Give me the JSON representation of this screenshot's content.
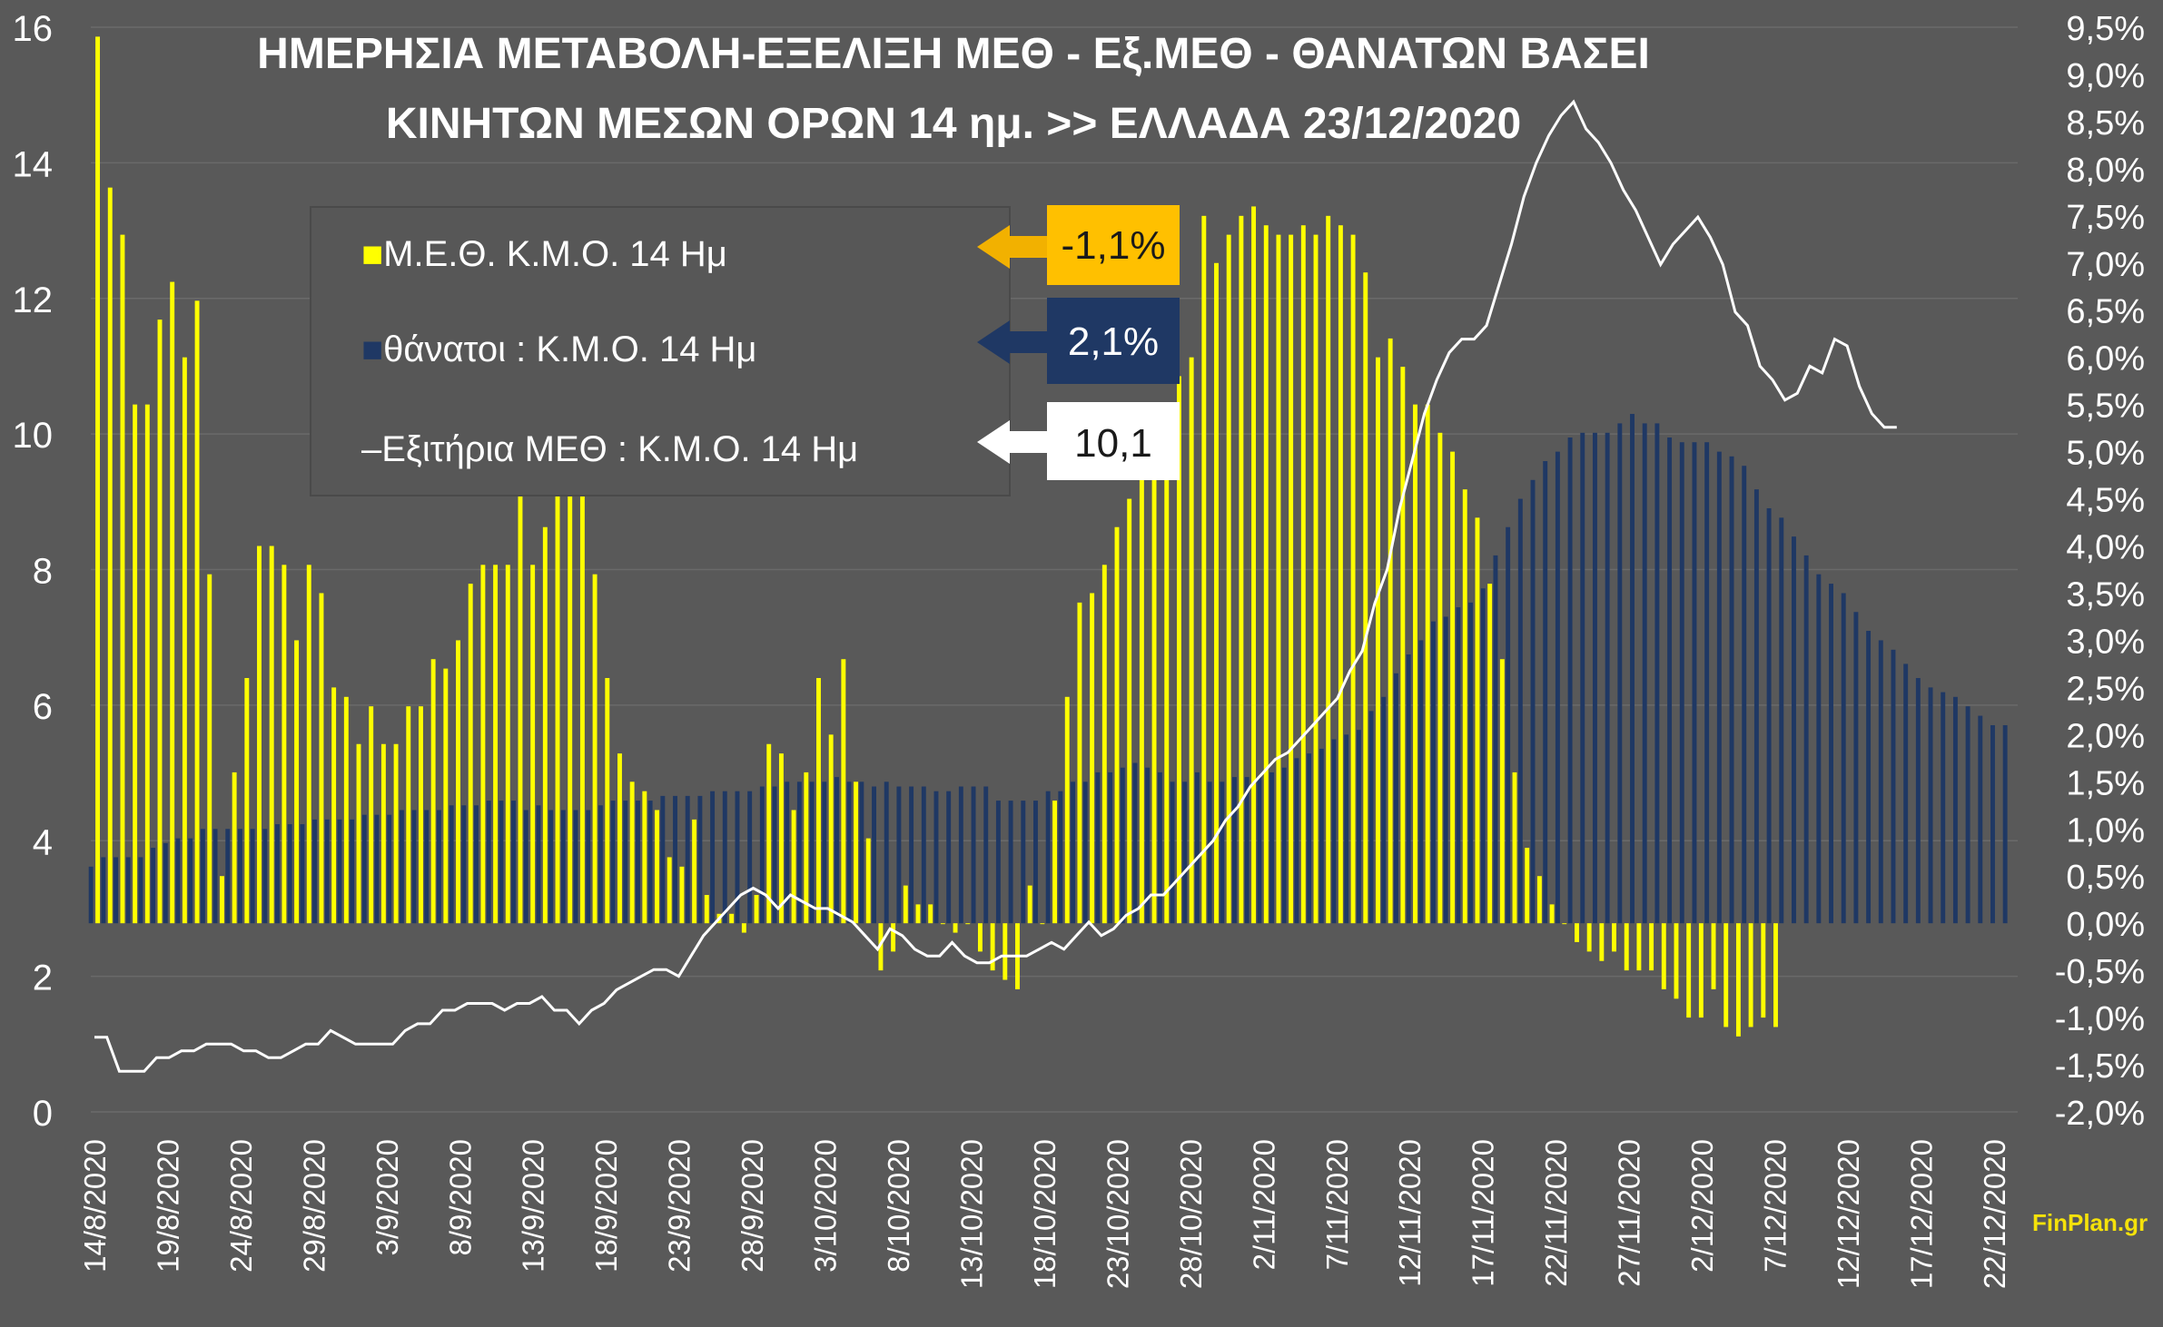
{
  "chart_data": {
    "type": "bar",
    "title_line1": "ΗΜΕΡΗΣΙΑ ΜΕΤΑΒΟΛΗ-ΕΞΕΛΙΞΗ  ΜΕΘ - Εξ.ΜΕΘ - ΘΑΝΑΤΩΝ ΒΑΣΕΙ",
    "title_line2": "ΚΙΝΗΤΩΝ ΜΕΣΩΝ ΟΡΩΝ 14 ημ. >> ΕΛΛΑΔΑ  23/12/2020",
    "credit": "FinPlan.gr",
    "start_date": "14/8/2020",
    "end_date": "23/12/2020",
    "y_left": {
      "min": 0,
      "max": 16,
      "ticks": [
        "0",
        "2",
        "4",
        "6",
        "8",
        "10",
        "12",
        "14",
        "16"
      ]
    },
    "y_right": {
      "min": -2.0,
      "max": 9.5,
      "unit": "%",
      "ticks": [
        "-2,0%",
        "-1,5%",
        "-1,0%",
        "-0,5%",
        "0,0%",
        "0,5%",
        "1,0%",
        "1,5%",
        "2,0%",
        "2,5%",
        "3,0%",
        "3,5%",
        "4,0%",
        "4,5%",
        "5,0%",
        "5,5%",
        "6,0%",
        "6,5%",
        "7,0%",
        "7,5%",
        "8,0%",
        "8,5%",
        "9,0%",
        "9,5%"
      ]
    },
    "x_tick_labels": [
      "14/8/2020",
      "19/8/2020",
      "24/8/2020",
      "29/8/2020",
      "3/9/2020",
      "8/9/2020",
      "13/9/2020",
      "18/9/2020",
      "23/9/2020",
      "28/9/2020",
      "3/10/2020",
      "8/10/2020",
      "13/10/2020",
      "18/10/2020",
      "23/10/2020",
      "28/10/2020",
      "2/11/2020",
      "7/11/2020",
      "12/11/2020",
      "17/11/2020",
      "22/11/2020",
      "27/11/2020",
      "2/12/2020",
      "7/12/2020",
      "12/12/2020",
      "17/12/2020",
      "22/12/2020"
    ],
    "legend": [
      {
        "label": "Μ.Ε.Θ.  Κ.Μ.Ο. 14 Ημ",
        "marker": "■",
        "color": "#ffff00",
        "last_value": "-1,1%"
      },
      {
        "label": "θάνατοι :  Κ.Μ.Ο. 14 Ημ",
        "marker": "■",
        "color": "#1f3864",
        "last_value": "2,1%"
      },
      {
        "label": "Εξιτήρια ΜΕΘ : Κ.Μ.Ο. 14 Ημ",
        "marker": "–",
        "color": "#ffffff",
        "last_value": "10,1"
      }
    ],
    "series": [
      {
        "name": "Μ.Ε.Θ.  Κ.Μ.Ο. 14 Ημ",
        "axis": "right",
        "color": "#ffff00",
        "values": [
          9.4,
          7.8,
          7.3,
          5.5,
          5.5,
          6.4,
          6.8,
          6.0,
          6.6,
          3.7,
          0.5,
          1.6,
          2.6,
          4.0,
          4.0,
          3.8,
          3.0,
          3.8,
          3.5,
          2.5,
          2.4,
          1.9,
          2.3,
          1.9,
          1.9,
          2.3,
          2.3,
          2.8,
          2.7,
          3.0,
          3.6,
          3.8,
          3.8,
          3.8,
          4.8,
          3.8,
          4.2,
          4.8,
          4.8,
          4.6,
          3.7,
          2.6,
          1.8,
          1.5,
          1.4,
          1.2,
          0.7,
          0.6,
          1.1,
          0.3,
          0.1,
          0.1,
          -0.1,
          0.3,
          1.9,
          1.8,
          1.2,
          1.6,
          2.6,
          2.0,
          2.8,
          1.5,
          0.9,
          -0.5,
          -0.3,
          0.4,
          0.2,
          0.2,
          0.0,
          -0.1,
          0.0,
          -0.3,
          -0.5,
          -0.6,
          -0.7,
          0.4,
          0.0,
          1.3,
          2.4,
          3.4,
          3.5,
          3.8,
          4.2,
          4.5,
          4.9,
          5.2,
          5.2,
          5.8,
          6.0,
          7.5,
          7.0,
          7.3,
          7.5,
          7.6,
          7.4,
          7.3,
          7.3,
          7.4,
          7.3,
          7.5,
          7.4,
          7.3,
          6.9,
          6.0,
          6.2,
          5.9,
          5.5,
          5.5,
          5.2,
          5.0,
          4.6,
          4.3,
          3.6,
          2.8,
          1.6,
          0.8,
          0.5,
          0.2,
          0.0,
          -0.2,
          -0.3,
          -0.4,
          -0.3,
          -0.5,
          -0.5,
          -0.5,
          -0.7,
          -0.8,
          -1.0,
          -1.0,
          -0.7,
          -1.1,
          -1.2,
          -1.1,
          -1.0,
          -1.1
        ]
      },
      {
        "name": "θάνατοι :  Κ.Μ.Ο. 14 Ημ",
        "axis": "right",
        "color": "#1f3864",
        "values": [
          0.6,
          0.7,
          0.7,
          0.7,
          0.7,
          0.8,
          0.85,
          0.9,
          0.9,
          1.0,
          1.0,
          1.0,
          1.0,
          1.0,
          1.0,
          1.05,
          1.05,
          1.05,
          1.1,
          1.1,
          1.1,
          1.1,
          1.15,
          1.15,
          1.15,
          1.2,
          1.2,
          1.2,
          1.2,
          1.25,
          1.25,
          1.25,
          1.3,
          1.3,
          1.3,
          1.2,
          1.25,
          1.2,
          1.2,
          1.2,
          1.2,
          1.25,
          1.3,
          1.3,
          1.3,
          1.3,
          1.35,
          1.35,
          1.35,
          1.35,
          1.4,
          1.4,
          1.4,
          1.4,
          1.45,
          1.45,
          1.5,
          1.5,
          1.5,
          1.5,
          1.55,
          1.5,
          1.5,
          1.45,
          1.5,
          1.45,
          1.45,
          1.45,
          1.4,
          1.4,
          1.45,
          1.45,
          1.45,
          1.3,
          1.3,
          1.3,
          1.3,
          1.4,
          1.4,
          1.5,
          1.5,
          1.6,
          1.6,
          1.65,
          1.7,
          1.65,
          1.6,
          1.5,
          1.5,
          1.6,
          1.5,
          1.5,
          1.55,
          1.55,
          1.55,
          1.6,
          1.65,
          1.75,
          1.8,
          1.85,
          1.95,
          2.0,
          2.05,
          2.25,
          2.4,
          2.65,
          2.85,
          3.0,
          3.2,
          3.25,
          3.35,
          3.4,
          3.55,
          3.9,
          4.2,
          4.5,
          4.7,
          4.9,
          5.0,
          5.15,
          5.2,
          5.2,
          5.2,
          5.3,
          5.4,
          5.3,
          5.3,
          5.15,
          5.1,
          5.1,
          5.1,
          5.0,
          4.95,
          4.85,
          4.6,
          4.4,
          4.3,
          4.1,
          3.9,
          3.7,
          3.6,
          3.5,
          3.3,
          3.1,
          3.0,
          2.9,
          2.75,
          2.6,
          2.5,
          2.45,
          2.4,
          2.3,
          2.2,
          2.1,
          2.1
        ]
      },
      {
        "name": "Εξιτήρια ΜΕΘ : Κ.Μ.Ο. 14 Ημ",
        "axis": "left",
        "color": "#ffffff",
        "values": [
          1.1,
          1.1,
          0.6,
          0.6,
          0.6,
          0.8,
          0.8,
          0.9,
          0.9,
          1.0,
          1.0,
          1.0,
          0.9,
          0.9,
          0.8,
          0.8,
          0.9,
          1.0,
          1.0,
          1.2,
          1.1,
          1.0,
          1.0,
          1.0,
          1.0,
          1.2,
          1.3,
          1.3,
          1.5,
          1.5,
          1.6,
          1.6,
          1.6,
          1.5,
          1.6,
          1.6,
          1.7,
          1.5,
          1.5,
          1.3,
          1.5,
          1.6,
          1.8,
          1.9,
          2.0,
          2.1,
          2.1,
          2.0,
          2.3,
          2.6,
          2.8,
          3.0,
          3.2,
          3.3,
          3.2,
          3.0,
          3.2,
          3.1,
          3.0,
          3.0,
          2.9,
          2.8,
          2.6,
          2.4,
          2.7,
          2.6,
          2.4,
          2.3,
          2.3,
          2.5,
          2.3,
          2.2,
          2.2,
          2.3,
          2.3,
          2.3,
          2.4,
          2.5,
          2.4,
          2.6,
          2.8,
          2.6,
          2.7,
          2.9,
          3.0,
          3.2,
          3.2,
          3.4,
          3.6,
          3.8,
          4.0,
          4.3,
          4.5,
          4.8,
          5.0,
          5.2,
          5.3,
          5.5,
          5.7,
          5.9,
          6.1,
          6.5,
          6.8,
          7.5,
          8.0,
          8.9,
          9.6,
          10.3,
          10.8,
          11.2,
          11.4,
          11.4,
          11.6,
          12.2,
          12.8,
          13.5,
          14.0,
          14.4,
          14.7,
          14.9,
          14.5,
          14.3,
          14.0,
          13.6,
          13.3,
          12.9,
          12.5,
          12.8,
          13.0,
          13.2,
          12.9,
          12.5,
          11.8,
          11.6,
          11.0,
          10.8,
          10.5,
          10.6,
          11.0,
          10.9,
          11.4,
          11.3,
          10.7,
          10.3,
          10.1,
          10.1
        ]
      }
    ]
  }
}
